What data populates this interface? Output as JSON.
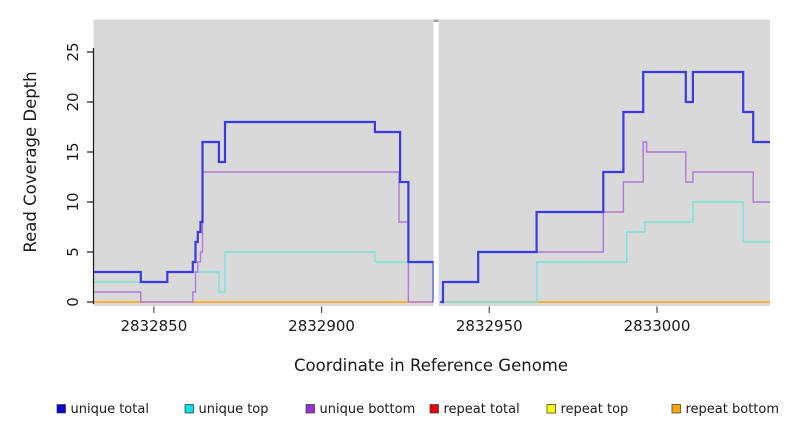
{
  "figure": {
    "background": "#ffffff",
    "plot_background": "#d9d9d9",
    "gap_cap_color": "#a5a5a5",
    "axis_color": "#1a1a1a",
    "x_tick_color": "#4d4d4d"
  },
  "chart_data": {
    "type": "line",
    "subtype": "step-coverage",
    "title": "",
    "xlabel": "Coordinate in Reference Genome",
    "ylabel": "Read Coverage Depth",
    "xlim": [
      2832832,
      2833033.7
    ],
    "ylim": [
      0,
      25
    ],
    "x_ticks": [
      2832850,
      2832900,
      2832950,
      2833000
    ],
    "y_ticks": [
      0,
      5,
      10,
      15,
      20,
      25
    ],
    "grid": false,
    "legend_position": "bottom",
    "gap": {
      "x_start": 2832933.4,
      "x_end": 2832934.9
    },
    "draw_order": [
      3,
      4,
      5,
      1,
      2,
      0
    ],
    "series": [
      {
        "name": "unique total",
        "line_color": "#3a3ae0",
        "legend_color": "#0000dd",
        "line_width": 2.2,
        "segments": [
          {
            "points": [
              [
                2832832,
                3
              ],
              [
                2832846.1,
                2
              ],
              [
                2832854,
                3
              ],
              [
                2832861.6,
                4
              ],
              [
                2832862.4,
                6
              ],
              [
                2832863.1,
                7
              ],
              [
                2832863.9,
                8
              ],
              [
                2832864.5,
                16
              ],
              [
                2832869.4,
                14
              ],
              [
                2832871.2,
                18
              ],
              [
                2832915.9,
                17
              ],
              [
                2832923.4,
                12
              ],
              [
                2832925.9,
                4
              ],
              [
                2832933.4,
                0
              ]
            ],
            "xend": 2832933.4
          },
          {
            "points": [
              [
                2832935.4,
                0
              ],
              [
                2832936.2,
                2
              ],
              [
                2832946.7,
                5
              ],
              [
                2832964.1,
                9
              ],
              [
                2832984,
                13
              ],
              [
                2832990,
                19
              ],
              [
                2832995.9,
                23
              ],
              [
                2833008.6,
                20
              ],
              [
                2833010.7,
                23
              ],
              [
                2833025.7,
                19
              ],
              [
                2833028.7,
                16
              ]
            ],
            "xend": 2833033.7
          }
        ]
      },
      {
        "name": "unique top",
        "line_color": "#74e6dc",
        "legend_color": "#00e0e6",
        "line_width": 1.4,
        "segments": [
          {
            "points": [
              [
                2832832,
                2
              ],
              [
                2832854,
                3
              ],
              [
                2832869.4,
                1
              ],
              [
                2832871.2,
                5
              ],
              [
                2832915.9,
                4
              ],
              [
                2832933.4,
                0
              ]
            ],
            "xend": 2832933.4
          },
          {
            "points": [
              [
                2832935.4,
                0
              ],
              [
                2832964.2,
                4
              ],
              [
                2832991,
                7
              ],
              [
                2832996.4,
                8
              ],
              [
                2833010.7,
                10
              ],
              [
                2833025.7,
                6
              ]
            ],
            "xend": 2833033.7
          }
        ]
      },
      {
        "name": "unique bottom",
        "line_color": "#b476de",
        "legend_color": "#9932cc",
        "line_width": 1.4,
        "segments": [
          {
            "points": [
              [
                2832832,
                1
              ],
              [
                2832846.1,
                0
              ],
              [
                2832861.6,
                1
              ],
              [
                2832862.4,
                3
              ],
              [
                2832863.1,
                4
              ],
              [
                2832863.9,
                5
              ],
              [
                2832864.5,
                13
              ],
              [
                2832923.1,
                8
              ],
              [
                2832925.9,
                0
              ]
            ],
            "xend": 2832933.4
          },
          {
            "points": [
              [
                2832935.4,
                0
              ],
              [
                2832936.2,
                2
              ],
              [
                2832946.7,
                5
              ],
              [
                2832984,
                9
              ],
              [
                2832990,
                12
              ],
              [
                2832995.9,
                16
              ],
              [
                2832996.9,
                15
              ],
              [
                2833008.6,
                12
              ],
              [
                2833010.7,
                13
              ],
              [
                2833028.7,
                10
              ]
            ],
            "xend": 2833033.7
          }
        ]
      },
      {
        "name": "repeat total",
        "line_color": "#e60000",
        "legend_color": "#e60000",
        "line_width": 1.0,
        "segments": [
          {
            "points": [
              [
                2832832,
                0
              ]
            ],
            "xend": 2832933.4
          },
          {
            "points": [
              [
                2832935.4,
                0
              ]
            ],
            "xend": 2833033.7
          }
        ]
      },
      {
        "name": "repeat top",
        "line_color": "#ffff00",
        "legend_color": "#ffff00",
        "line_width": 1.0,
        "segments": [
          {
            "points": [
              [
                2832832,
                0
              ]
            ],
            "xend": 2832933.4
          },
          {
            "points": [
              [
                2832935.4,
                0
              ]
            ],
            "xend": 2833033.7
          }
        ]
      },
      {
        "name": "repeat bottom",
        "line_color": "#ffa500",
        "legend_color": "#ffa500",
        "line_width": 1.6,
        "segments": [
          {
            "points": [
              [
                2832832,
                0
              ]
            ],
            "xend": 2832933.4
          },
          {
            "points": [
              [
                2832935.4,
                0
              ]
            ],
            "xend": 2833033.7
          }
        ]
      }
    ],
    "legend": [
      "unique total",
      "unique top",
      "unique bottom",
      "repeat total",
      "repeat top",
      "repeat bottom"
    ]
  }
}
